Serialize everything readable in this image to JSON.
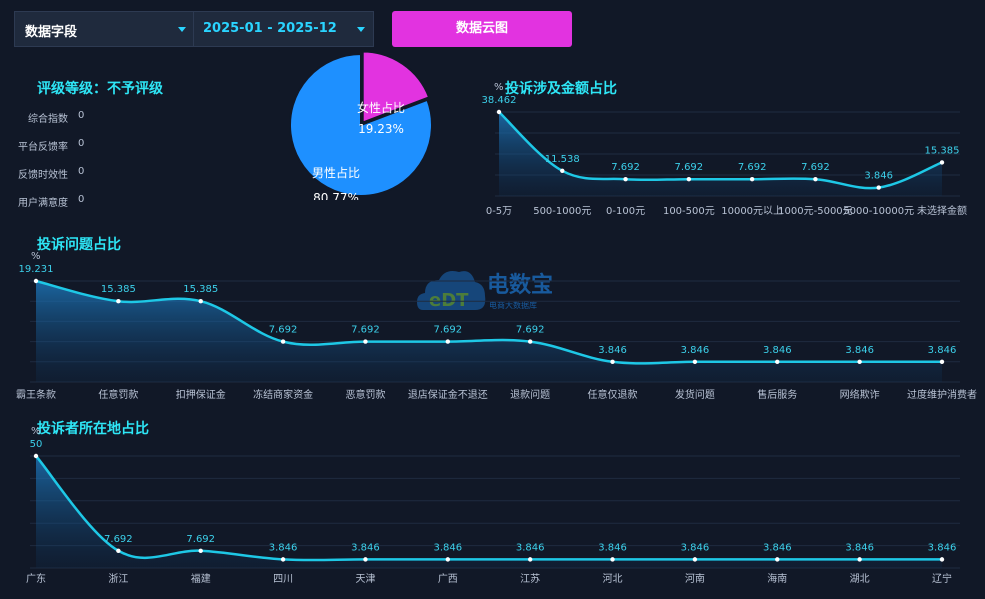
{
  "filters": {
    "field_select": "数据字段",
    "date_range": "2025-01 - 2025-12"
  },
  "cloud_button": "数据云图",
  "rating": {
    "title": "评级等级：不予评级",
    "metrics": [
      {
        "label": "综合指数",
        "value": "0"
      },
      {
        "label": "平台反馈率",
        "value": "0"
      },
      {
        "label": "反馈时效性",
        "value": "0"
      },
      {
        "label": "用户满意度",
        "value": "0"
      }
    ]
  },
  "watermark": {
    "brand": "电数宝",
    "sub": "电商大数据库",
    "logo_text": "eDT"
  },
  "colors": {
    "background": "#111827",
    "line": "#1ec8e6",
    "female": "#e233e0",
    "male": "#1e90ff",
    "title": "#2ee6f6"
  },
  "chart_data": [
    {
      "id": "gender",
      "type": "pie",
      "title": "",
      "slices": [
        {
          "label": "女性占比",
          "value": 19.23,
          "display": "19.23%"
        },
        {
          "label": "男性占比",
          "value": 80.77,
          "display": "80.77%"
        }
      ]
    },
    {
      "id": "amount",
      "type": "area",
      "title": "投诉涉及金额占比",
      "ylabel": "%",
      "categories": [
        "0-5万",
        "500-1000元",
        "0-100元",
        "100-500元",
        "10000元以上",
        "1000元-5000元",
        "5000-10000元",
        "未选择金额"
      ],
      "values": [
        38.462,
        11.538,
        7.692,
        7.692,
        7.692,
        7.692,
        3.846,
        15.385
      ],
      "labels": [
        "38.462",
        "11.538",
        "7.692",
        "7.692",
        "7.692",
        "7.692",
        "3.846",
        "15.385"
      ]
    },
    {
      "id": "issues",
      "type": "area",
      "title": "投诉问题占比",
      "ylabel": "%",
      "categories": [
        "霸王条款",
        "任意罚款",
        "扣押保证金",
        "冻结商家资金",
        "恶意罚款",
        "退店保证金不退还",
        "退款问题",
        "任意仅退款",
        "发货问题",
        "售后服务",
        "网络欺诈",
        "过度维护消费者"
      ],
      "values": [
        19.231,
        15.385,
        15.385,
        7.692,
        7.692,
        7.692,
        7.692,
        3.846,
        3.846,
        3.846,
        3.846,
        3.846
      ],
      "labels": [
        "19.231",
        "15.385",
        "15.385",
        "7.692",
        "7.692",
        "7.692",
        "7.692",
        "3.846",
        "3.846",
        "3.846",
        "3.846",
        "3.846"
      ]
    },
    {
      "id": "region",
      "type": "area",
      "title": "投诉者所在地占比",
      "ylabel": "%",
      "categories": [
        "广东",
        "浙江",
        "福建",
        "四川",
        "天津",
        "广西",
        "江苏",
        "河北",
        "河南",
        "海南",
        "湖北",
        "辽宁"
      ],
      "values": [
        50,
        7.692,
        7.692,
        3.846,
        3.846,
        3.846,
        3.846,
        3.846,
        3.846,
        3.846,
        3.846,
        3.846
      ],
      "labels": [
        "50",
        "7.692",
        "7.692",
        "3.846",
        "3.846",
        "3.846",
        "3.846",
        "3.846",
        "3.846",
        "3.846",
        "3.846",
        "3.846"
      ]
    }
  ]
}
